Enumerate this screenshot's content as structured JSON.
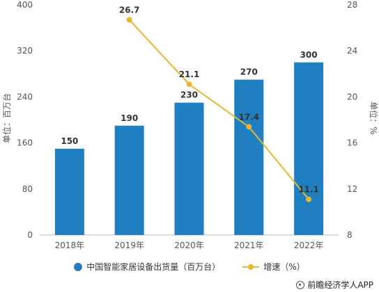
{
  "chart_data": {
    "type": "bar",
    "categories": [
      "2018年",
      "2019年",
      "2020年",
      "2021年",
      "2022年"
    ],
    "series": [
      {
        "name": "中国智能家居设备出货量（百万台）",
        "type": "bar",
        "axis": "left",
        "color": "#1f7fc1",
        "values": [
          150,
          190,
          230,
          270,
          300
        ]
      },
      {
        "name": "增速（%）",
        "type": "line",
        "axis": "right",
        "color": "#e9b634",
        "values": [
          null,
          26.7,
          21.1,
          17.4,
          11.1
        ]
      }
    ],
    "ylabel": "单位：百万台",
    "ylabel_right": "单位：%",
    "ylim": [
      0,
      400
    ],
    "y_ticks": [
      0,
      80,
      160,
      240,
      320,
      400
    ],
    "ylim_right": [
      8,
      28
    ],
    "y_ticks_right": [
      8,
      12,
      16,
      20,
      24,
      28
    ],
    "legend_placement": "bottom",
    "grid": false
  },
  "legend": {
    "bar_label": "中国智能家居设备出货量（百万台）",
    "line_label": "增速（%）"
  },
  "credit": "前瞻经济学人APP"
}
